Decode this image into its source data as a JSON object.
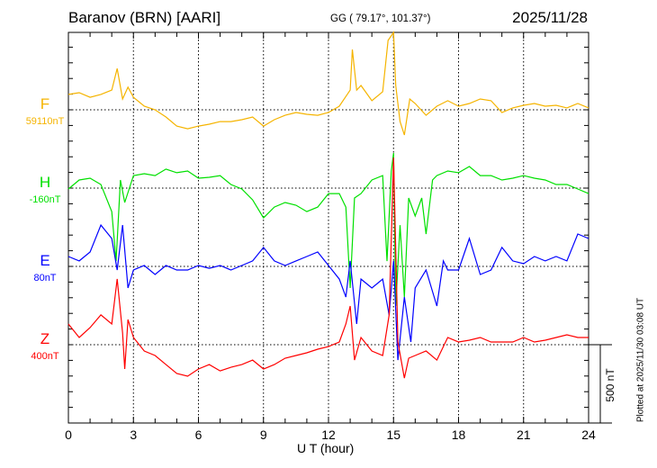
{
  "chart_data": {
    "type": "line",
    "title": "Baranov (BRN)  [AARI]",
    "subtitle": "GG ( 79.17°, 101.37°)",
    "date": "2025/11/28",
    "xlabel": "U T (hour)",
    "xlim": [
      0,
      24
    ],
    "xticks": [
      "0",
      "3",
      "6",
      "9",
      "12",
      "15",
      "18",
      "21",
      "24"
    ],
    "scale_bar_label": "500 nT",
    "footer": "Plotted at 2025/11/30 03:08 UT",
    "grid": "dotted at 3-hour intervals and series baselines",
    "series": [
      {
        "name": "F",
        "baseline_label": "59110nT",
        "color": "#f5b400",
        "x": [
          0,
          0.5,
          1,
          1.5,
          2,
          2.25,
          2.5,
          2.75,
          3,
          3.5,
          4,
          4.5,
          5,
          5.5,
          6,
          6.5,
          7,
          7.5,
          8,
          8.5,
          9,
          9.5,
          10,
          10.5,
          11,
          11.5,
          12,
          12.5,
          13,
          13.1,
          13.3,
          13.5,
          14,
          14.5,
          14.75,
          15,
          15.1,
          15.3,
          15.5,
          15.75,
          16,
          16.5,
          17,
          17.5,
          18,
          18.5,
          19,
          19.5,
          20,
          20.5,
          21,
          21.5,
          22,
          22.5,
          23,
          23.5,
          24
        ],
        "y": [
          98,
          109,
          80,
          98,
          126,
          264,
          69,
          144,
          80,
          23,
          0,
          -46,
          -104,
          -121,
          -104,
          -92,
          -75,
          -75,
          -63,
          -46,
          -104,
          -63,
          -35,
          -17,
          -29,
          -35,
          -17,
          23,
          126,
          385,
          126,
          155,
          58,
          115,
          443,
          494,
          155,
          -75,
          -161,
          69,
          40,
          -35,
          23,
          58,
          23,
          40,
          69,
          58,
          -17,
          12,
          29,
          40,
          23,
          29,
          12,
          40,
          12
        ]
      },
      {
        "name": "H",
        "baseline_label": "-160nT",
        "color": "#00e000",
        "x": [
          0,
          0.5,
          1,
          1.5,
          2,
          2.2,
          2.4,
          2.6,
          3,
          3.5,
          4,
          4.5,
          5,
          5.5,
          6,
          6.5,
          7,
          7.5,
          8,
          8.5,
          9,
          9.5,
          10,
          10.5,
          11,
          11.5,
          12,
          12.5,
          12.8,
          13,
          13.2,
          13.5,
          14,
          14.5,
          14.7,
          14.9,
          15,
          15.1,
          15.3,
          15.5,
          15.7,
          16,
          16.3,
          16.5,
          16.8,
          17,
          17.5,
          18,
          18.5,
          19,
          19.5,
          20,
          20.5,
          21,
          21.5,
          22,
          22.5,
          23,
          23.5,
          24
        ],
        "y": [
          -6,
          52,
          63,
          23,
          -150,
          -466,
          52,
          -92,
          80,
          92,
          80,
          121,
          98,
          109,
          63,
          69,
          80,
          23,
          -6,
          -75,
          -190,
          -121,
          -92,
          -109,
          -150,
          -121,
          -35,
          -35,
          -121,
          -638,
          -63,
          -35,
          52,
          80,
          -466,
          109,
          224,
          -753,
          -236,
          -696,
          -63,
          -178,
          -63,
          -293,
          52,
          80,
          109,
          98,
          138,
          80,
          80,
          52,
          63,
          80,
          63,
          52,
          23,
          23,
          -6,
          -35
        ]
      },
      {
        "name": "E",
        "baseline_label": "80nT",
        "color": "#0000ff",
        "x": [
          0,
          0.5,
          1,
          1.5,
          2,
          2.25,
          2.5,
          2.75,
          3,
          3.5,
          4,
          4.5,
          5,
          5.5,
          6,
          6.5,
          7,
          7.5,
          8,
          8.5,
          9,
          9.5,
          10,
          10.5,
          11,
          11.5,
          12,
          12.5,
          12.8,
          13,
          13.3,
          13.5,
          14,
          14.5,
          14.8,
          15,
          15.2,
          15.5,
          15.8,
          16,
          16.5,
          17,
          17.3,
          17.5,
          18,
          18.5,
          19,
          19.5,
          20,
          20.5,
          21,
          21.5,
          22,
          22.5,
          23,
          23.5,
          24
        ],
        "y": [
          63,
          35,
          92,
          264,
          178,
          -23,
          264,
          -138,
          -23,
          6,
          -52,
          6,
          -23,
          -23,
          6,
          -12,
          6,
          -23,
          6,
          35,
          121,
          35,
          6,
          35,
          63,
          92,
          6,
          -81,
          -196,
          35,
          -368,
          -81,
          -138,
          -81,
          -311,
          35,
          -598,
          -196,
          -483,
          -138,
          -23,
          -253,
          35,
          -23,
          -23,
          178,
          -52,
          -23,
          121,
          35,
          17,
          63,
          35,
          63,
          35,
          207,
          178
        ]
      },
      {
        "name": "Z",
        "baseline_label": "400nT",
        "color": "#ff0000",
        "x": [
          0,
          0.5,
          1,
          1.5,
          2,
          2.25,
          2.5,
          2.6,
          2.75,
          3,
          3.5,
          4,
          4.5,
          5,
          5.5,
          6,
          6.5,
          7,
          7.5,
          8,
          8.5,
          9,
          9.5,
          10,
          10.5,
          11,
          11.5,
          12,
          12.5,
          12.8,
          13,
          13.2,
          13.5,
          14,
          14.5,
          14.8,
          15,
          15.2,
          15.5,
          15.7,
          16,
          16.5,
          17,
          17.3,
          17.5,
          18,
          18.5,
          19,
          19.5,
          20,
          20.5,
          21,
          21.5,
          22,
          22.5,
          23,
          23.5,
          24
        ],
        "y": [
          132,
          46,
          109,
          190,
          132,
          420,
          75,
          -155,
          161,
          46,
          -40,
          -69,
          -127,
          -184,
          -201,
          -155,
          -127,
          -167,
          -144,
          -127,
          -98,
          -155,
          -127,
          -86,
          -69,
          -52,
          -29,
          -12,
          17,
          132,
          247,
          -98,
          46,
          -40,
          -69,
          190,
          1195,
          17,
          -213,
          -86,
          -69,
          -40,
          -98,
          -12,
          46,
          17,
          29,
          46,
          17,
          17,
          17,
          46,
          17,
          29,
          46,
          63,
          46,
          46
        ]
      }
    ]
  }
}
